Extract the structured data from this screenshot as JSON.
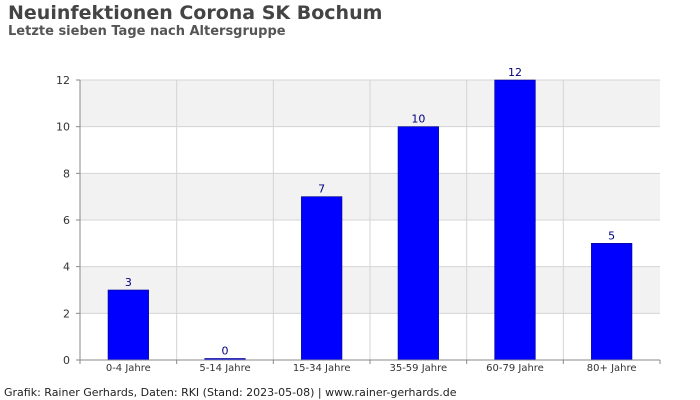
{
  "title": "Neuinfektionen Corona SK Bochum",
  "subtitle": "Letzte sieben Tage nach Altersgruppe",
  "footer": "Grafik: Rainer Gerhards, Daten: RKI (Stand: 2023-05-08) | www.rainer-gerhards.de",
  "colors": {
    "bar_fill": "#0000ff",
    "bar_stroke": "#000080",
    "value_label": "#000080",
    "band_shaded": "#f2f2f2",
    "band_plain": "#ffffff",
    "grid": "#d4d4d4",
    "axis": "#888888"
  },
  "chart_data": {
    "type": "bar",
    "categories": [
      "0-4 Jahre",
      "5-14 Jahre",
      "15-34 Jahre",
      "35-59 Jahre",
      "60-79 Jahre",
      "80+ Jahre"
    ],
    "values": [
      3,
      0,
      7,
      10,
      12,
      5
    ],
    "data_labels": [
      "3",
      "0",
      "7",
      "10",
      "12",
      "5"
    ],
    "y_ticks": [
      0,
      2,
      4,
      6,
      8,
      10,
      12
    ],
    "ylim": [
      0,
      12
    ],
    "xlabel": "",
    "ylabel": "",
    "grid": true,
    "legend": "none"
  }
}
